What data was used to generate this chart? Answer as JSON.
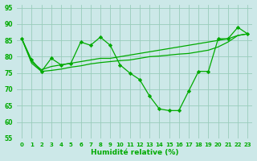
{
  "xlabel": "Humidité relative (%)",
  "bg_color": "#cce8e8",
  "grid_color": "#99ccbb",
  "line_color": "#00aa00",
  "xlim": [
    -0.5,
    23.5
  ],
  "ylim": [
    55,
    96
  ],
  "yticks": [
    55,
    60,
    65,
    70,
    75,
    80,
    85,
    90,
    95
  ],
  "xticks": [
    0,
    1,
    2,
    3,
    4,
    5,
    6,
    7,
    8,
    9,
    10,
    11,
    12,
    13,
    14,
    15,
    16,
    17,
    18,
    19,
    20,
    21,
    22,
    23
  ],
  "line1_y": [
    85.5,
    79.0,
    75.5,
    79.5,
    77.5,
    78.0,
    84.5,
    83.5,
    86.0,
    83.5,
    77.5,
    75.0,
    73.0,
    68.0,
    64.0,
    63.5,
    63.5,
    69.5,
    75.5,
    75.5,
    85.5,
    85.5,
    89.0,
    87.0
  ],
  "line2_y": [
    85.5,
    78.5,
    76.0,
    77.0,
    77.5,
    78.0,
    78.5,
    79.0,
    79.5,
    79.5,
    80.0,
    80.5,
    81.0,
    81.5,
    82.0,
    82.5,
    83.0,
    83.5,
    84.0,
    84.5,
    85.0,
    85.5,
    86.5,
    87.0
  ],
  "line3_y": [
    85.5,
    78.0,
    75.5,
    75.8,
    76.2,
    76.8,
    77.2,
    77.8,
    78.2,
    78.5,
    78.8,
    79.0,
    79.5,
    80.0,
    80.2,
    80.5,
    80.8,
    81.0,
    81.5,
    82.0,
    83.0,
    84.5,
    86.5,
    87.0
  ]
}
